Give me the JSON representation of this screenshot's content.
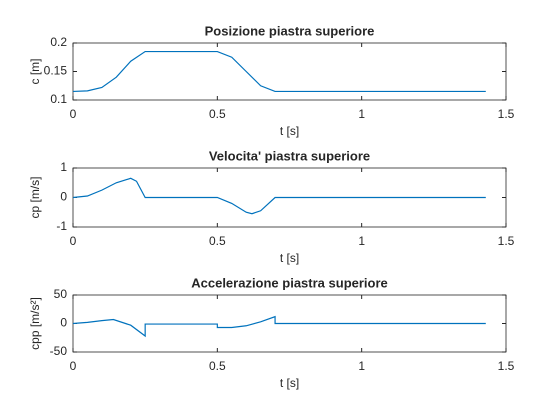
{
  "chart_data": [
    {
      "type": "line",
      "title": "Posizione piastra superiore",
      "xlabel": "t [s]",
      "ylabel": "c [m]",
      "x": [
        0,
        0.05,
        0.1,
        0.15,
        0.2,
        0.25,
        0.3,
        0.35,
        0.4,
        0.45,
        0.5,
        0.55,
        0.6,
        0.65,
        0.7,
        0.8,
        1.0,
        1.2,
        1.43
      ],
      "series": [
        {
          "color": "#0072bd",
          "values": [
            0.115,
            0.116,
            0.122,
            0.14,
            0.168,
            0.185,
            0.185,
            0.185,
            0.185,
            0.185,
            0.185,
            0.175,
            0.15,
            0.125,
            0.115,
            0.115,
            0.115,
            0.115,
            0.115
          ]
        }
      ],
      "xlim": [
        0,
        1.5
      ],
      "xticks": [
        0,
        0.5,
        1,
        1.5
      ],
      "ylim": [
        0.1,
        0.2
      ],
      "yticks": [
        0.1,
        0.15,
        0.2
      ]
    },
    {
      "type": "line",
      "title": "Velocita' piastra superiore",
      "xlabel": "t [s]",
      "ylabel": "cp [m/s]",
      "x": [
        0,
        0.05,
        0.1,
        0.15,
        0.2,
        0.22,
        0.25,
        0.3,
        0.5,
        0.55,
        0.6,
        0.62,
        0.65,
        0.7,
        1.0,
        1.43
      ],
      "series": [
        {
          "color": "#0072bd",
          "values": [
            0,
            0.05,
            0.25,
            0.5,
            0.65,
            0.55,
            0,
            0,
            0,
            -0.2,
            -0.5,
            -0.55,
            -0.45,
            0,
            0,
            0
          ]
        }
      ],
      "xlim": [
        0,
        1.5
      ],
      "xticks": [
        0,
        0.5,
        1,
        1.5
      ],
      "ylim": [
        -1,
        1
      ],
      "yticks": [
        -1,
        0,
        1
      ]
    },
    {
      "type": "line",
      "title": "Accelerazione piastra superiore",
      "xlabel": "t [s]",
      "ylabel": "cpp [m/s²]",
      "x": [
        0,
        0.05,
        0.1,
        0.14,
        0.2,
        0.25,
        0.25,
        0.3,
        0.5,
        0.5,
        0.55,
        0.6,
        0.65,
        0.7,
        0.7,
        1.0,
        1.43
      ],
      "series": [
        {
          "color": "#0072bd",
          "values": [
            0,
            2,
            5,
            7,
            -3,
            -22,
            -1,
            -1,
            -1,
            -7,
            -7,
            -4,
            3,
            12,
            0,
            0,
            0
          ]
        }
      ],
      "xlim": [
        0,
        1.5
      ],
      "xticks": [
        0,
        0.5,
        1,
        1.5
      ],
      "ylim": [
        -50,
        50
      ],
      "yticks": [
        -50,
        0,
        50
      ]
    }
  ]
}
